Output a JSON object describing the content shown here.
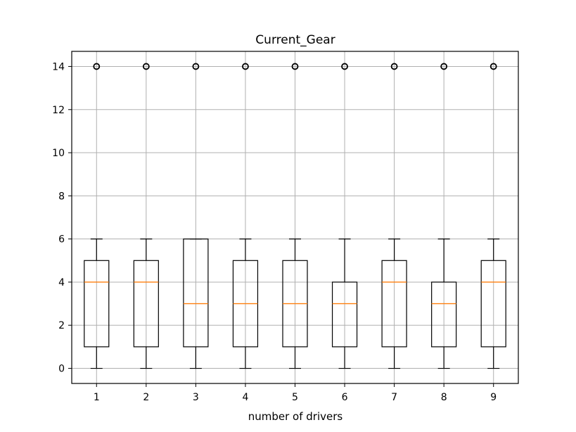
{
  "chart_data": {
    "type": "boxplot",
    "title": "Current_Gear",
    "xlabel": "number of drivers",
    "ylabel": "",
    "categories": [
      "1",
      "2",
      "3",
      "4",
      "5",
      "6",
      "7",
      "8",
      "9"
    ],
    "ylim": [
      -0.7,
      14.7
    ],
    "yticks": [
      0,
      2,
      4,
      6,
      8,
      10,
      12,
      14
    ],
    "grid": true,
    "boxes": [
      {
        "whisker_low": 0,
        "q1": 1,
        "median": 4,
        "q3": 5,
        "whisker_high": 6,
        "outliers": [
          14
        ]
      },
      {
        "whisker_low": 0,
        "q1": 1,
        "median": 4,
        "q3": 5,
        "whisker_high": 6,
        "outliers": [
          14
        ]
      },
      {
        "whisker_low": 0,
        "q1": 1,
        "median": 3,
        "q3": 6,
        "whisker_high": 6,
        "outliers": [
          14
        ]
      },
      {
        "whisker_low": 0,
        "q1": 1,
        "median": 3,
        "q3": 5,
        "whisker_high": 6,
        "outliers": [
          14
        ]
      },
      {
        "whisker_low": 0,
        "q1": 1,
        "median": 3,
        "q3": 5,
        "whisker_high": 6,
        "outliers": [
          14
        ]
      },
      {
        "whisker_low": 0,
        "q1": 1,
        "median": 3,
        "q3": 4,
        "whisker_high": 6,
        "outliers": [
          14
        ]
      },
      {
        "whisker_low": 0,
        "q1": 1,
        "median": 4,
        "q3": 5,
        "whisker_high": 6,
        "outliers": [
          14
        ]
      },
      {
        "whisker_low": 0,
        "q1": 1,
        "median": 3,
        "q3": 4,
        "whisker_high": 6,
        "outliers": [
          14
        ]
      },
      {
        "whisker_low": 0,
        "q1": 1,
        "median": 4,
        "q3": 5,
        "whisker_high": 6,
        "outliers": [
          14
        ]
      }
    ],
    "colors": {
      "box": "#000000",
      "median": "#ff7f0e",
      "grid": "#b0b0b0"
    }
  }
}
